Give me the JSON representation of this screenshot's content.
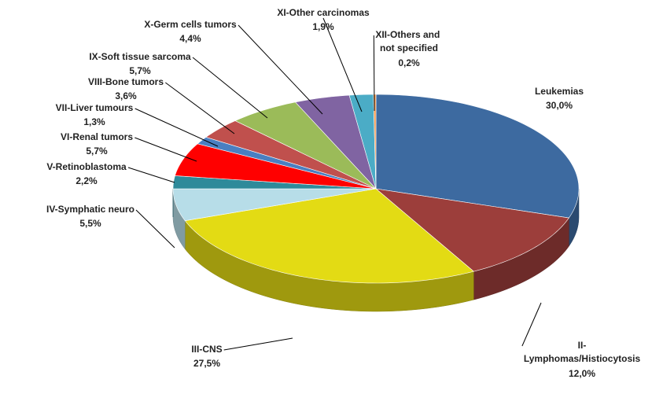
{
  "chart_data": {
    "type": "pie3d",
    "categories": [
      "Leukemias",
      "II-Lymphomas/Histiocytosis",
      "III-CNS",
      "IV-Symphatic neuro",
      "V-Retinoblastoma",
      "VI-Renal tumors",
      "VII-Liver tumours",
      "VIII-Bone tumors",
      "IX-Soft tissue sarcoma",
      "X-Germ cells tumors",
      "XI-Other carcinomas",
      "XII-Others and not specified"
    ],
    "values": [
      30.0,
      12.0,
      27.5,
      5.5,
      2.2,
      5.7,
      1.3,
      3.6,
      5.7,
      4.4,
      1.9,
      0.2
    ],
    "value_labels": [
      "30,0%",
      "12,0%",
      "27,5%",
      "5,5%",
      "2,2%",
      "5,7%",
      "1,3%",
      "3,6%",
      "5,7%",
      "4,4%",
      "1,9%",
      "0,2%"
    ],
    "colors": [
      "#3d6aa0",
      "#9c3e3b",
      "#e3db14",
      "#b7dde8",
      "#2e8a9a",
      "#ff0000",
      "#4a7fc1",
      "#c0504d",
      "#9bbb59",
      "#8064a2",
      "#4bacc6",
      "#f79646"
    ]
  }
}
